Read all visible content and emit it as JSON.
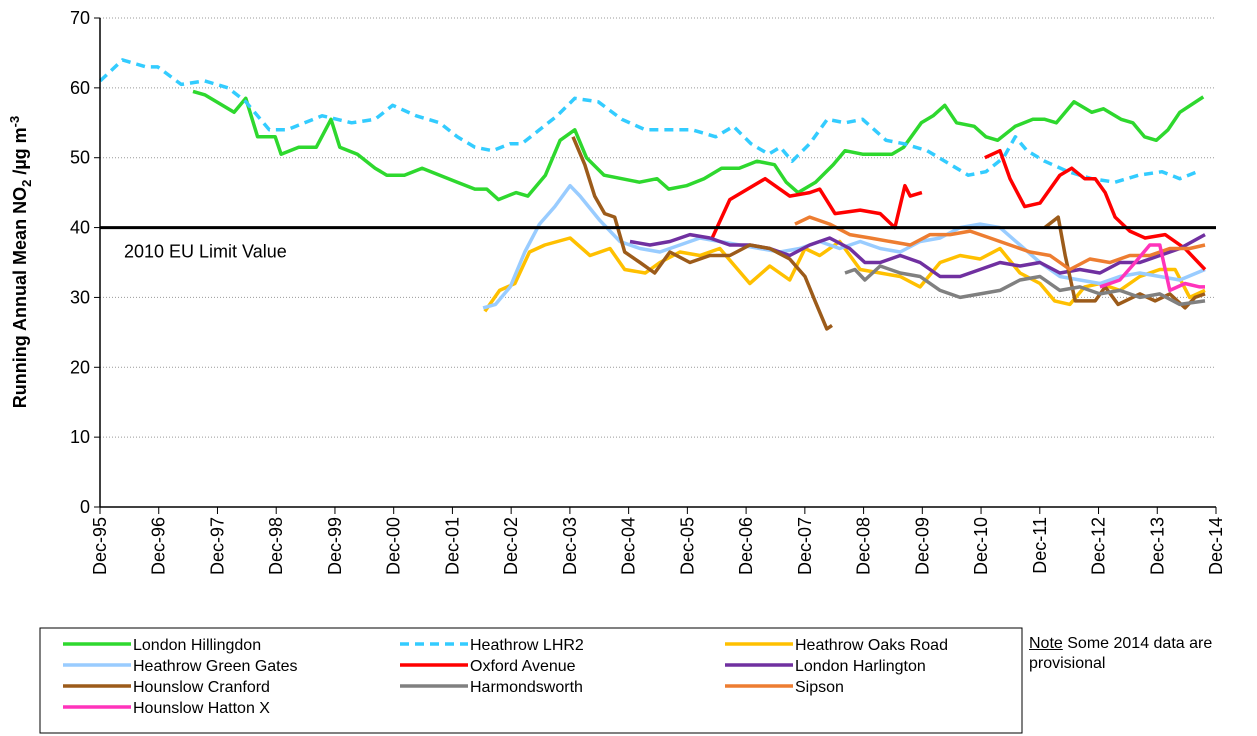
{
  "chart_data": {
    "type": "line",
    "ylabel": {
      "text": "Running Annual Mean NO",
      "sub": "2",
      "unit": " /µg m",
      "sup": "-3"
    },
    "note": {
      "title": "Note",
      "text": "Some 2014 data are provisional"
    },
    "limit_line": {
      "value": 40,
      "label": "2010 EU Limit Value"
    },
    "xlim": [
      1995.917,
      2014.917
    ],
    "xticks": [
      {
        "value": 1995.917,
        "label": "Dec-95"
      },
      {
        "value": 1996.917,
        "label": "Dec-96"
      },
      {
        "value": 1997.917,
        "label": "Dec-97"
      },
      {
        "value": 1998.917,
        "label": "Dec-98"
      },
      {
        "value": 1999.917,
        "label": "Dec-99"
      },
      {
        "value": 2000.917,
        "label": "Dec-00"
      },
      {
        "value": 2001.917,
        "label": "Dec-01"
      },
      {
        "value": 2002.917,
        "label": "Dec-02"
      },
      {
        "value": 2003.917,
        "label": "Dec-03"
      },
      {
        "value": 2004.917,
        "label": "Dec-04"
      },
      {
        "value": 2005.917,
        "label": "Dec-05"
      },
      {
        "value": 2006.917,
        "label": "Dec-06"
      },
      {
        "value": 2007.917,
        "label": "Dec-07"
      },
      {
        "value": 2008.917,
        "label": "Dec-08"
      },
      {
        "value": 2009.917,
        "label": "Dec-09"
      },
      {
        "value": 2010.917,
        "label": "Dec-10"
      },
      {
        "value": 2011.917,
        "label": "Dec-11"
      },
      {
        "value": 2012.917,
        "label": "Dec-12"
      },
      {
        "value": 2013.917,
        "label": "Dec-13"
      },
      {
        "value": 2014.917,
        "label": "Dec-14"
      }
    ],
    "ylim": [
      0,
      70
    ],
    "yticks": [
      0,
      10,
      20,
      30,
      40,
      50,
      60,
      70
    ],
    "grid": true,
    "series": [
      {
        "name": "London Hillingdon",
        "color": "#2ed82e",
        "dash": false,
        "x": [
          1997.5,
          1997.7,
          1997.9,
          1998.2,
          1998.4,
          1998.6,
          1998.9,
          1999.0,
          1999.3,
          1999.6,
          1999.85,
          2000.0,
          2000.3,
          2000.6,
          2000.8,
          2001.1,
          2001.4,
          2001.7,
          2002.0,
          2002.3,
          2002.5,
          2002.7,
          2003.0,
          2003.2,
          2003.5,
          2003.75,
          2004.0,
          2004.2,
          2004.5,
          2004.8,
          2005.1,
          2005.4,
          2005.6,
          2005.9,
          2006.2,
          2006.5,
          2006.8,
          2007.1,
          2007.4,
          2007.6,
          2007.8,
          2008.1,
          2008.4,
          2008.6,
          2008.9,
          2009.1,
          2009.4,
          2009.6,
          2009.9,
          2010.1,
          2010.3,
          2010.5,
          2010.8,
          2011.0,
          2011.2,
          2011.5,
          2011.8,
          2012.0,
          2012.2,
          2012.5,
          2012.8,
          2013.0,
          2013.3,
          2013.5,
          2013.7,
          2013.9,
          2014.1,
          2014.3,
          2014.7
        ],
        "values": [
          59.5,
          59,
          58,
          56.5,
          58.5,
          53,
          53,
          50.5,
          51.5,
          51.5,
          55.5,
          51.5,
          50.5,
          48.5,
          47.5,
          47.5,
          48.5,
          47.5,
          46.5,
          45.5,
          45.5,
          44,
          45,
          44.5,
          47.5,
          52.5,
          54,
          50,
          47.5,
          47,
          46.5,
          47,
          45.5,
          46,
          47,
          48.5,
          48.5,
          49.5,
          49,
          46.5,
          45,
          46.5,
          49,
          51,
          50.5,
          50.5,
          50.5,
          51.5,
          55,
          56,
          57.5,
          55,
          54.5,
          53,
          52.5,
          54.5,
          55.5,
          55.5,
          55,
          58,
          56.5,
          57,
          55.5,
          55,
          53,
          52.5,
          54,
          56.5,
          58.7
        ]
      },
      {
        "name": "Heathrow LHR2",
        "color": "#33ccff",
        "dash": true,
        "x": [
          1995.92,
          1996.3,
          1996.7,
          1996.9,
          1997.3,
          1997.7,
          1998.1,
          1998.4,
          1998.8,
          1999.1,
          1999.4,
          1999.7,
          2000.2,
          2000.6,
          2000.9,
          2001.3,
          2001.7,
          2002.0,
          2002.3,
          2002.6,
          2002.9,
          2003.1,
          2003.4,
          2003.7,
          2004.0,
          2004.4,
          2004.8,
          2005.2,
          2005.6,
          2006.0,
          2006.4,
          2006.7,
          2007.0,
          2007.3,
          2007.5,
          2007.7,
          2008.0,
          2008.3,
          2008.6,
          2008.9,
          2009.3,
          2009.6,
          2010.0,
          2010.4,
          2010.7,
          2011.0,
          2011.3,
          2011.5,
          2011.7,
          2012.0,
          2012.4,
          2012.8,
          2013.2,
          2013.6,
          2014.0,
          2014.3,
          2014.6
        ],
        "values": [
          61,
          64,
          63,
          63,
          60.5,
          61,
          60,
          58,
          54,
          54,
          55,
          56,
          55,
          55.5,
          57.5,
          56,
          55,
          53,
          51.5,
          51,
          52,
          52,
          54,
          56,
          58.5,
          58,
          55.5,
          54,
          54,
          54,
          53,
          54.5,
          52,
          50.5,
          51.5,
          49.5,
          52,
          55.5,
          55,
          55.5,
          52.5,
          52,
          51,
          49,
          47.5,
          48,
          50,
          53,
          51,
          49.5,
          48,
          47,
          46.5,
          47.5,
          48,
          47,
          48
        ]
      },
      {
        "name": "Heathrow Oaks Road",
        "color": "#ffc000",
        "dash": false,
        "x": [
          2002.47,
          2002.72,
          2002.98,
          2003.23,
          2003.49,
          2003.92,
          2004.26,
          2004.6,
          2004.85,
          2005.2,
          2005.45,
          2005.79,
          2006.13,
          2006.47,
          2006.98,
          2007.32,
          2007.66,
          2007.92,
          2008.17,
          2008.51,
          2008.86,
          2009.2,
          2009.54,
          2009.88,
          2010.22,
          2010.56,
          2010.9,
          2011.24,
          2011.58,
          2011.92,
          2012.17,
          2012.43,
          2012.68,
          2012.94,
          2013.28,
          2013.62,
          2013.96,
          2014.22,
          2014.47,
          2014.73
        ],
        "values": [
          28,
          31,
          32,
          36.5,
          37.5,
          38.5,
          36,
          37,
          34,
          33.5,
          35,
          36.5,
          36,
          37,
          32,
          34.5,
          32.5,
          37,
          36,
          38,
          34,
          33.5,
          33,
          31.5,
          35,
          36,
          35.5,
          37,
          33.5,
          32,
          29.5,
          29,
          31.5,
          32,
          31,
          33,
          34,
          34,
          30,
          31
        ]
      },
      {
        "name": "Heathrow Green Gates",
        "color": "#99ccff",
        "dash": false,
        "x": [
          2002.44,
          2002.65,
          2002.9,
          2003.15,
          2003.4,
          2003.66,
          2003.92,
          2004.09,
          2004.43,
          2004.77,
          2005.11,
          2005.45,
          2005.79,
          2006.13,
          2006.47,
          2006.81,
          2007.15,
          2007.49,
          2007.83,
          2008.17,
          2008.51,
          2008.86,
          2009.2,
          2009.54,
          2009.88,
          2010.22,
          2010.56,
          2010.9,
          2011.24,
          2011.58,
          2011.92,
          2012.26,
          2012.6,
          2012.94,
          2013.28,
          2013.62,
          2013.96,
          2014.3,
          2014.73
        ],
        "values": [
          28.5,
          29,
          31.5,
          36.5,
          40.5,
          43,
          46,
          44.5,
          41,
          38,
          37,
          36.5,
          37.5,
          38.5,
          38,
          37.5,
          37,
          36.5,
          37,
          38,
          37,
          38,
          37,
          36.5,
          38,
          38.5,
          40,
          40.5,
          40,
          37.5,
          35,
          33,
          32.5,
          32,
          33,
          33.5,
          33,
          32.5,
          34
        ]
      },
      {
        "name": "Oxford Avenue",
        "color": "#ff0000",
        "dash": false,
        "x": [
          2006.34,
          2006.64,
          2007.24,
          2007.66,
          2008.0,
          2008.17,
          2008.43,
          2008.86,
          2009.2,
          2009.45,
          2009.62,
          2009.71,
          2009.91,
          null,
          2010.98,
          2011.24,
          2011.41,
          2011.66,
          2011.92,
          2012.26,
          2012.46,
          2012.68,
          2012.86,
          2013.03,
          2013.2,
          2013.45,
          2013.71,
          2014.05,
          2014.39,
          2014.73
        ],
        "values": [
          38.5,
          44,
          47,
          44.5,
          45,
          45.5,
          42,
          42.5,
          42,
          40,
          46,
          44.5,
          45,
          null,
          50,
          51,
          47,
          43,
          43.5,
          47.5,
          48.5,
          47,
          47,
          45,
          41.5,
          39.5,
          38.5,
          39,
          37,
          34
        ]
      },
      {
        "name": "London Harlington",
        "color": "#7030a0",
        "dash": false,
        "x": [
          2004.94,
          2005.28,
          2005.62,
          2005.96,
          2006.3,
          2006.64,
          2006.98,
          2007.32,
          2007.66,
          2008.0,
          2008.34,
          2008.68,
          2008.94,
          2009.2,
          2009.54,
          2009.88,
          2010.22,
          2010.56,
          2010.9,
          2011.24,
          2011.58,
          2011.92,
          2012.26,
          2012.6,
          2012.94,
          2013.28,
          2013.62,
          2013.96,
          2014.3,
          2014.73
        ],
        "values": [
          38,
          37.5,
          38,
          39,
          38.5,
          37.5,
          37.5,
          37,
          36,
          37.5,
          38.5,
          37,
          35,
          35,
          36,
          35,
          33,
          33,
          34,
          35,
          34.5,
          35,
          33.5,
          34,
          33.5,
          35,
          35,
          36,
          37,
          39
        ]
      },
      {
        "name": "Hounslow Cranford",
        "color": "#9c5b1a",
        "dash": false,
        "x": [
          2003.97,
          2004.17,
          2004.34,
          2004.51,
          2004.68,
          2004.85,
          2005.11,
          2005.36,
          2005.62,
          2005.96,
          2006.3,
          2006.64,
          2006.98,
          2007.32,
          2007.66,
          2007.92,
          2008.09,
          2008.29,
          2008.38,
          null,
          2012.0,
          2012.23,
          2012.35,
          2012.52,
          2012.86,
          2013.03,
          2013.25,
          2013.62,
          2013.88,
          2014.13,
          2014.39,
          2014.56,
          2014.73
        ],
        "values": [
          53,
          49,
          44.5,
          42,
          41.5,
          36.5,
          35,
          33.5,
          36.5,
          35,
          36,
          36,
          37.5,
          37,
          35.5,
          33,
          29.5,
          25.5,
          26,
          null,
          40,
          41.5,
          36,
          29.5,
          29.5,
          31.5,
          29,
          30.5,
          29.5,
          30.5,
          28.5,
          30,
          30.5
        ]
      },
      {
        "name": "Harmondsworth",
        "color": "#808080",
        "dash": false,
        "x": [
          2008.6,
          2008.77,
          2008.94,
          2009.2,
          2009.54,
          2009.88,
          2010.22,
          2010.56,
          2010.9,
          2011.24,
          2011.58,
          2011.92,
          2012.26,
          2012.6,
          2012.94,
          2013.28,
          2013.62,
          2013.96,
          2014.3,
          2014.73
        ],
        "values": [
          33.5,
          34,
          32.5,
          34.5,
          33.5,
          33,
          31,
          30,
          30.5,
          31,
          32.5,
          33,
          31,
          31.5,
          30.5,
          31,
          30,
          30.5,
          29,
          29.5
        ]
      },
      {
        "name": "Sipson",
        "color": "#ed7d31",
        "dash": false,
        "x": [
          2007.75,
          2008.0,
          2008.34,
          2008.68,
          2009.03,
          2009.37,
          2009.71,
          2010.05,
          2010.39,
          2010.73,
          2011.07,
          2011.41,
          2011.75,
          2012.09,
          2012.43,
          2012.77,
          2013.11,
          2013.45,
          2013.79,
          2014.13,
          2014.47,
          2014.73
        ],
        "values": [
          40.5,
          41.5,
          40.5,
          39,
          38.5,
          38,
          37.5,
          39,
          39,
          39.5,
          38.5,
          37.5,
          36.5,
          36,
          34,
          35.5,
          35,
          36,
          36,
          37,
          37,
          37.5
        ]
      },
      {
        "name": "Hounslow Hatton X",
        "color": "#ff33bb",
        "dash": false,
        "x": [
          2012.94,
          2013.11,
          2013.28,
          2013.54,
          2013.79,
          2013.96,
          2014.13,
          2014.39,
          2014.64,
          2014.73
        ],
        "values": [
          31.5,
          32,
          32.5,
          35,
          37.5,
          37.5,
          31,
          32,
          31.5,
          31.5
        ]
      }
    ]
  }
}
